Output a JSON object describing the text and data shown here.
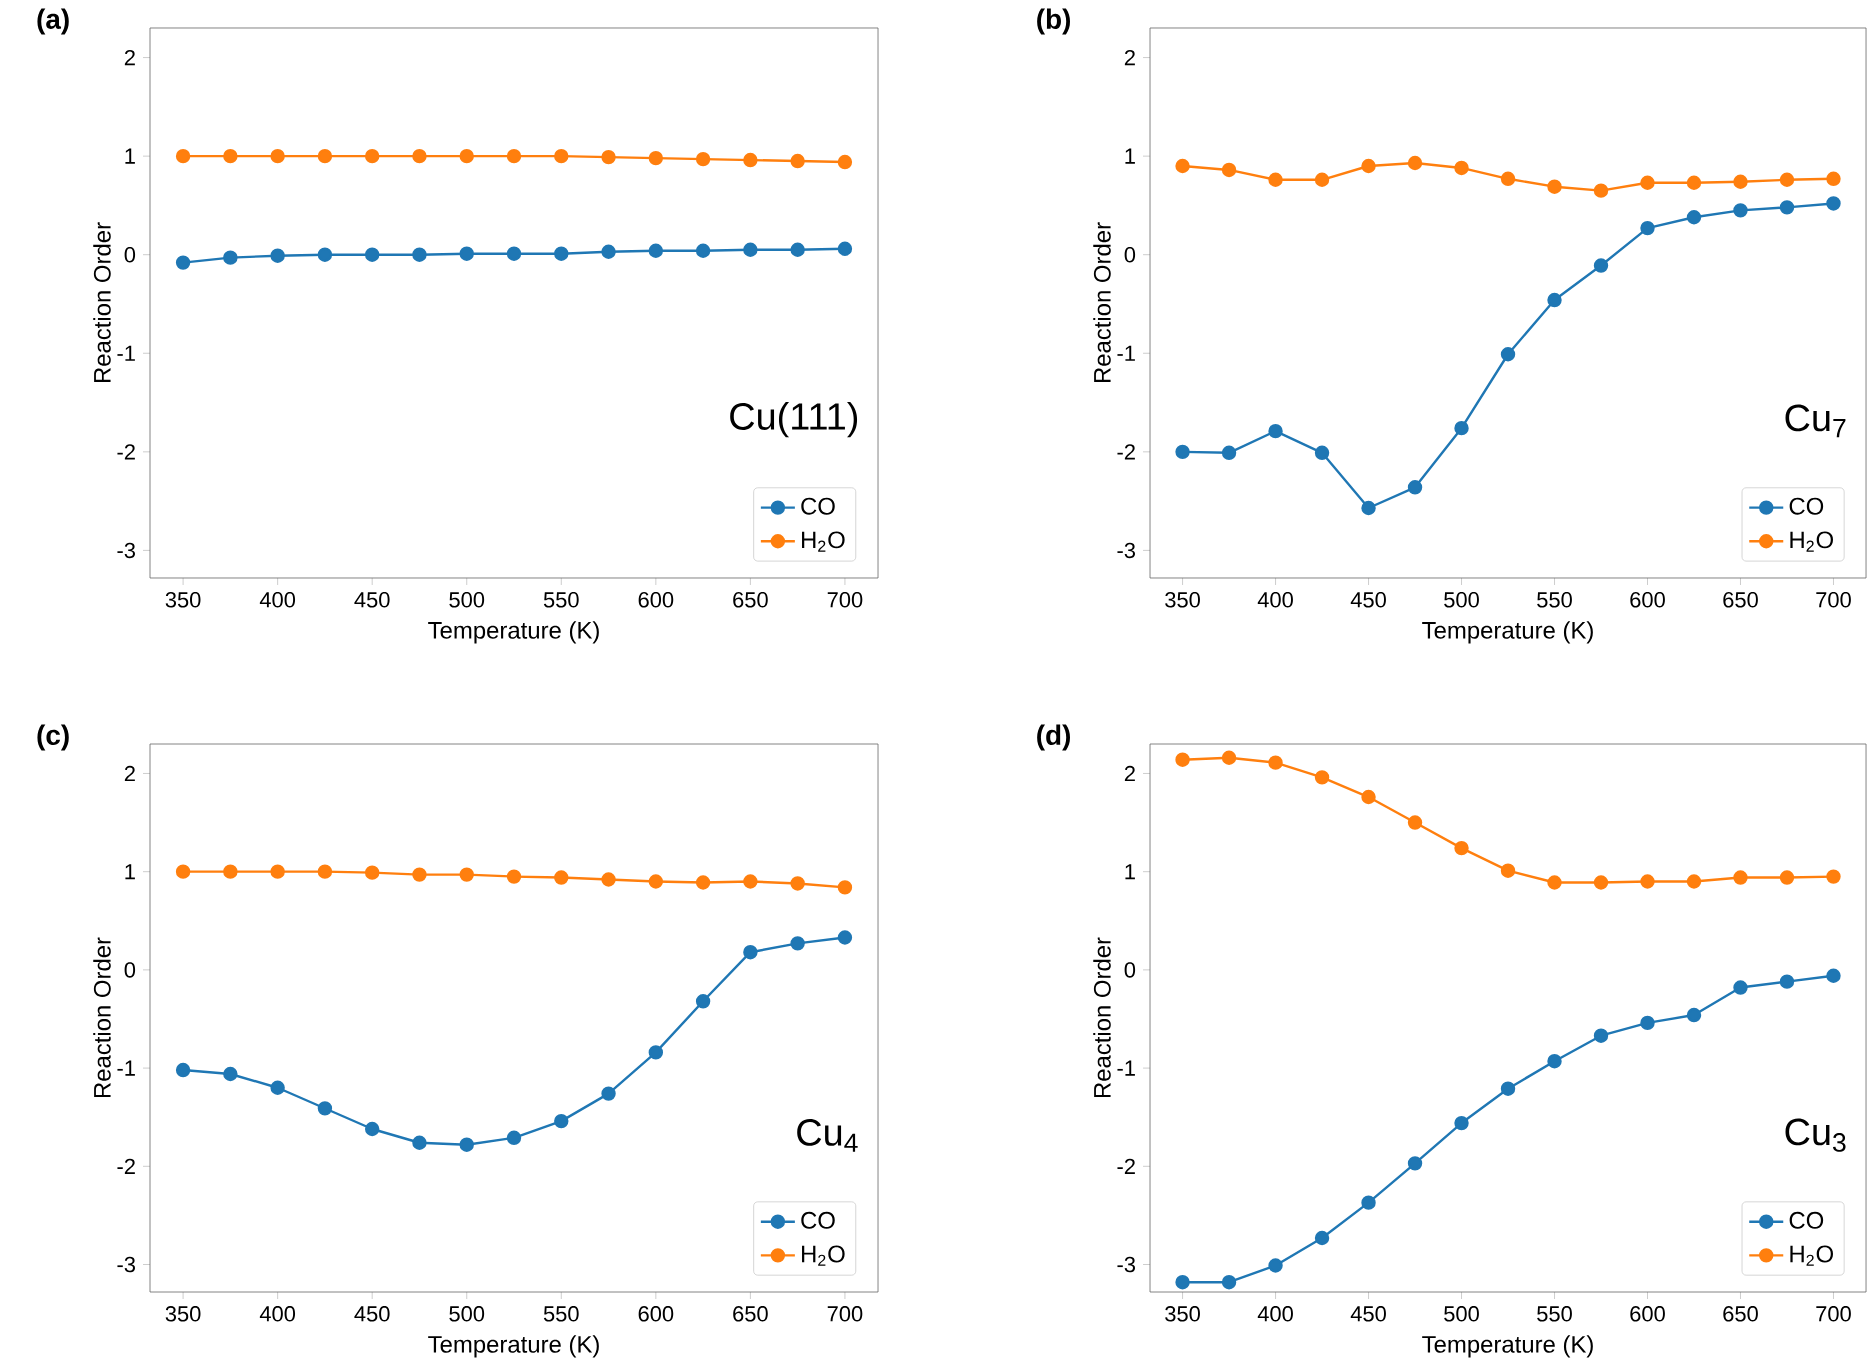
{
  "chart_data": [
    {
      "type": "line",
      "title": "(a)",
      "xlabel": "Temperature (K)",
      "ylabel": "Reaction Order",
      "annotations": [
        "Cu(111)"
      ],
      "x": [
        350,
        375,
        400,
        425,
        450,
        475,
        500,
        525,
        550,
        575,
        600,
        625,
        650,
        675,
        700
      ],
      "xlim": [
        332.5,
        717.5
      ],
      "ylim": [
        -3.28,
        2.3
      ],
      "xticks": [
        350,
        400,
        450,
        500,
        550,
        600,
        650,
        700
      ],
      "yticks": [
        -3,
        -2,
        -1,
        0,
        1,
        2
      ],
      "legend": "bottom right",
      "marker": "circle",
      "series": [
        {
          "name": "CO",
          "color": "#1f77b4",
          "values": [
            -0.08,
            -0.03,
            -0.01,
            0,
            0,
            0,
            0.01,
            0.01,
            0.01,
            0.03,
            0.04,
            0.04,
            0.05,
            0.05,
            0.06
          ]
        },
        {
          "name": "H$_{2}$O",
          "color": "#ff7f0e",
          "values": [
            1,
            1,
            1,
            1,
            1,
            1,
            1,
            1,
            1,
            0.99,
            0.98,
            0.97,
            0.96,
            0.95,
            0.94
          ]
        }
      ]
    },
    {
      "type": "line",
      "title": "(b)",
      "xlabel": "Temperature (K)",
      "ylabel": "Reaction Order",
      "annotations": [
        "Cu$_{7}$"
      ],
      "x": [
        350,
        375,
        400,
        425,
        450,
        475,
        500,
        525,
        550,
        575,
        600,
        625,
        650,
        675,
        700
      ],
      "xlim": [
        332.5,
        717.5
      ],
      "ylim": [
        -3.28,
        2.3
      ],
      "xticks": [
        350,
        400,
        450,
        500,
        550,
        600,
        650,
        700
      ],
      "yticks": [
        -3,
        -2,
        -1,
        0,
        1,
        2
      ],
      "legend": "bottom right",
      "marker": "circle",
      "series": [
        {
          "name": "CO",
          "color": "#1f77b4",
          "values": [
            -2.0,
            -2.01,
            -1.79,
            -2.01,
            -2.57,
            -2.36,
            -1.76,
            -1.01,
            -0.46,
            -0.11,
            0.27,
            0.38,
            0.45,
            0.48,
            0.52
          ]
        },
        {
          "name": "H$_{2}$O",
          "color": "#ff7f0e",
          "values": [
            0.9,
            0.86,
            0.76,
            0.76,
            0.9,
            0.93,
            0.88,
            0.77,
            0.69,
            0.65,
            0.73,
            0.73,
            0.74,
            0.76,
            0.77
          ]
        }
      ]
    },
    {
      "type": "line",
      "title": "(c)",
      "xlabel": "Temperature (K)",
      "ylabel": "Reaction Order",
      "annotations": [
        "Cu$_{4}$"
      ],
      "x": [
        350,
        375,
        400,
        425,
        450,
        475,
        500,
        525,
        550,
        575,
        600,
        625,
        650,
        675,
        700
      ],
      "xlim": [
        332.5,
        717.5
      ],
      "ylim": [
        -3.28,
        2.3
      ],
      "xticks": [
        350,
        400,
        450,
        500,
        550,
        600,
        650,
        700
      ],
      "yticks": [
        -3,
        -2,
        -1,
        0,
        1,
        2
      ],
      "legend": "bottom right",
      "marker": "circle",
      "series": [
        {
          "name": "CO",
          "color": "#1f77b4",
          "values": [
            -1.02,
            -1.06,
            -1.2,
            -1.41,
            -1.62,
            -1.76,
            -1.78,
            -1.71,
            -1.54,
            -1.26,
            -0.84,
            -0.32,
            0.18,
            0.27,
            0.33
          ]
        },
        {
          "name": "H$_{2}$O",
          "color": "#ff7f0e",
          "values": [
            1.0,
            1.0,
            1.0,
            1.0,
            0.99,
            0.97,
            0.97,
            0.95,
            0.94,
            0.92,
            0.9,
            0.89,
            0.9,
            0.88,
            0.84
          ]
        }
      ]
    },
    {
      "type": "line",
      "title": "(d)",
      "xlabel": "Temperature (K)",
      "ylabel": "Reaction Order",
      "annotations": [
        "Cu$_{3}$"
      ],
      "x": [
        350,
        375,
        400,
        425,
        450,
        475,
        500,
        525,
        550,
        575,
        600,
        625,
        650,
        675,
        700
      ],
      "xlim": [
        332.5,
        717.5
      ],
      "ylim": [
        -3.28,
        2.3
      ],
      "xticks": [
        350,
        400,
        450,
        500,
        550,
        600,
        650,
        700
      ],
      "yticks": [
        -3,
        -2,
        -1,
        0,
        1,
        2
      ],
      "legend": "bottom right",
      "marker": "circle",
      "series": [
        {
          "name": "CO",
          "color": "#1f77b4",
          "values": [
            -3.18,
            -3.18,
            -3.01,
            -2.73,
            -2.37,
            -1.97,
            -1.56,
            -1.21,
            -0.93,
            -0.67,
            -0.54,
            -0.46,
            -0.18,
            -0.12,
            -0.06
          ]
        },
        {
          "name": "H$_{2}$O",
          "color": "#ff7f0e",
          "values": [
            2.14,
            2.16,
            2.11,
            1.96,
            1.76,
            1.5,
            1.24,
            1.01,
            0.89,
            0.89,
            0.9,
            0.9,
            0.94,
            0.94,
            0.95
          ]
        }
      ]
    }
  ]
}
